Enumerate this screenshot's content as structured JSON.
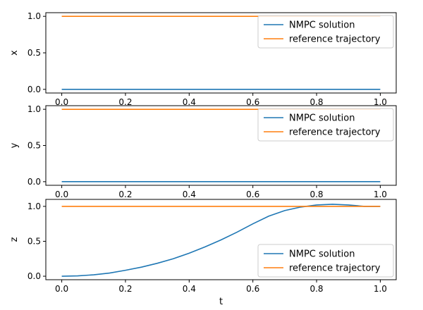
{
  "colors": {
    "nmpc": "#1f77b4",
    "reference": "#ff7f0e",
    "axes": "#000000",
    "legend_border": "#cccccc"
  },
  "chart_data": [
    {
      "type": "line",
      "ylabel": "x",
      "xlabel": "",
      "xlim": [
        -0.05,
        1.05
      ],
      "ylim": [
        -0.05,
        1.05
      ],
      "xticks": [
        "0.0",
        "0.2",
        "0.4",
        "0.6",
        "0.8",
        "1.0"
      ],
      "yticks": [
        "0.0",
        "0.5",
        "1.0"
      ],
      "legend": "upper right",
      "series": [
        {
          "name": "NMPC solution",
          "x": [
            0.0,
            1.0
          ],
          "y": [
            0.0,
            0.0
          ]
        },
        {
          "name": "reference trajectory",
          "x": [
            0.0,
            1.0
          ],
          "y": [
            1.0,
            1.0
          ]
        }
      ]
    },
    {
      "type": "line",
      "ylabel": "y",
      "xlabel": "",
      "xlim": [
        -0.05,
        1.05
      ],
      "ylim": [
        -0.05,
        1.05
      ],
      "xticks": [
        "0.0",
        "0.2",
        "0.4",
        "0.6",
        "0.8",
        "1.0"
      ],
      "yticks": [
        "0.0",
        "0.5",
        "1.0"
      ],
      "legend": "upper right",
      "series": [
        {
          "name": "NMPC solution",
          "x": [
            0.0,
            1.0
          ],
          "y": [
            0.0,
            0.0
          ]
        },
        {
          "name": "reference trajectory",
          "x": [
            0.0,
            1.0
          ],
          "y": [
            1.0,
            1.0
          ]
        }
      ]
    },
    {
      "type": "line",
      "ylabel": "z",
      "xlabel": "t",
      "xlim": [
        -0.05,
        1.05
      ],
      "ylim": [
        -0.05,
        1.1
      ],
      "xticks": [
        "0.0",
        "0.2",
        "0.4",
        "0.6",
        "0.8",
        "1.0"
      ],
      "yticks": [
        "0.0",
        "0.5",
        "1.0"
      ],
      "legend": "lower right",
      "series": [
        {
          "name": "NMPC solution",
          "x": [
            0.0,
            0.05,
            0.1,
            0.15,
            0.2,
            0.25,
            0.3,
            0.35,
            0.4,
            0.45,
            0.5,
            0.55,
            0.6,
            0.65,
            0.7,
            0.75,
            0.8,
            0.85,
            0.9,
            0.95,
            1.0
          ],
          "y": [
            0.0,
            0.005,
            0.02,
            0.045,
            0.085,
            0.13,
            0.185,
            0.25,
            0.33,
            0.42,
            0.52,
            0.63,
            0.75,
            0.86,
            0.94,
            0.99,
            1.02,
            1.03,
            1.02,
            1.0,
            1.0
          ]
        },
        {
          "name": "reference trajectory",
          "x": [
            0.0,
            1.0
          ],
          "y": [
            1.0,
            1.0
          ]
        }
      ]
    }
  ]
}
